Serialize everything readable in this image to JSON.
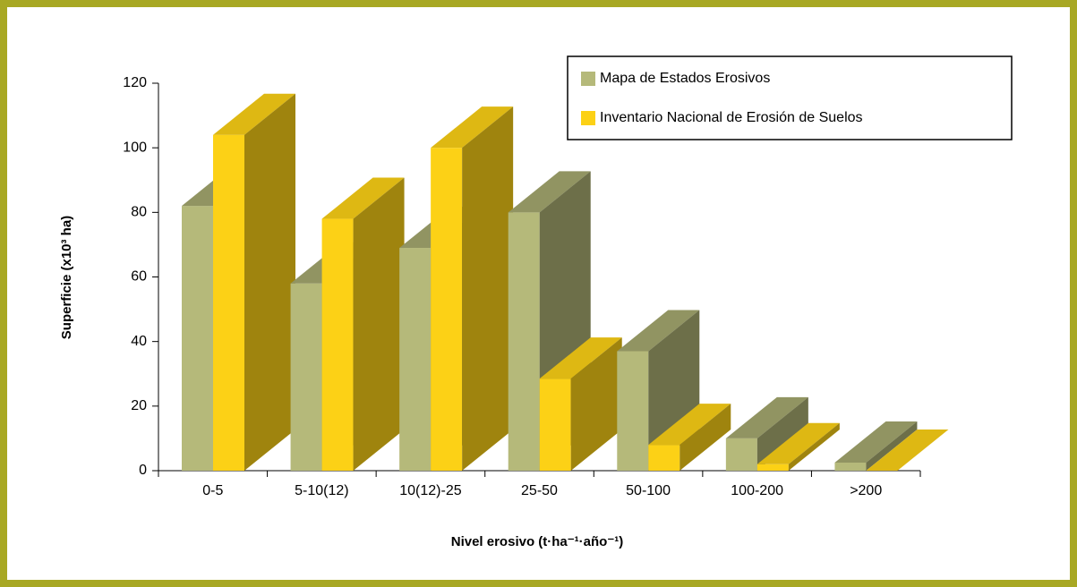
{
  "chart_data": {
    "type": "bar3d",
    "categories": [
      "0-5",
      "5-10(12)",
      "10(12)-25",
      "25-50",
      "50-100",
      "100-200",
      ">200"
    ],
    "series": [
      {
        "name": "Mapa de Estados Erosivos",
        "color": "#b5b97a",
        "values": [
          82,
          58,
          69,
          80,
          37,
          10,
          2.5
        ]
      },
      {
        "name": "Inventario Nacional de Erosión de Suelos",
        "color": "#fcd116",
        "values": [
          104,
          78,
          100,
          28.5,
          8,
          2,
          0
        ]
      }
    ],
    "ylim": [
      0,
      120
    ],
    "yticks": [
      0,
      20,
      40,
      60,
      80,
      100,
      120
    ],
    "y_label": "Superficie (x10³ ha)",
    "x_label": "Nivel erosivo (t·ha⁻¹·año⁻¹)",
    "legend": "top-right"
  }
}
